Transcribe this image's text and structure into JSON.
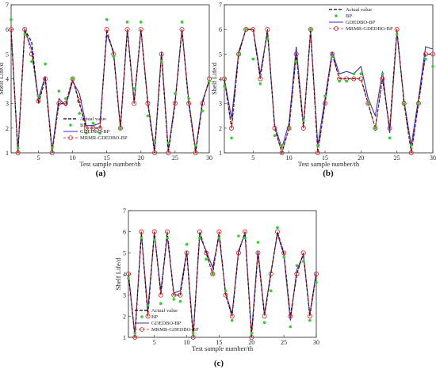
{
  "chart_data": [
    {
      "type": "line",
      "panel": "(a)",
      "xlabel": "Test sample number/th",
      "ylabel": "Shelf Life/d",
      "xlim": [
        1,
        30
      ],
      "ylim": [
        1,
        7
      ],
      "xticks": [
        5,
        10,
        15,
        20,
        25,
        30
      ],
      "yticks": [
        1,
        2,
        3,
        4,
        5,
        6,
        7
      ],
      "legend_position": "bottom-center",
      "x": [
        1,
        2,
        3,
        4,
        5,
        6,
        7,
        8,
        9,
        10,
        11,
        12,
        13,
        14,
        15,
        16,
        17,
        18,
        19,
        20,
        21,
        22,
        23,
        24,
        25,
        26,
        27,
        28,
        29,
        30
      ],
      "series": [
        {
          "name": "Actual value",
          "style": "dashed",
          "color": "#000000",
          "values": [
            6,
            1,
            6,
            5.5,
            3,
            4,
            1,
            3,
            3,
            4,
            3,
            2,
            2,
            2,
            6,
            5,
            2,
            6,
            3,
            6,
            3,
            1,
            5,
            1,
            3,
            6,
            3,
            1,
            3,
            4
          ]
        },
        {
          "name": "BP",
          "style": "marker",
          "color": "#33cc33",
          "values": [
            6.4,
            1.2,
            5.8,
            4.7,
            3.3,
            4.6,
            1.2,
            3.5,
            3.2,
            4.0,
            2.6,
            1.8,
            2.2,
            1.8,
            6.4,
            4.9,
            2.0,
            6.3,
            3.6,
            6.3,
            2.5,
            1.5,
            4.7,
            1.4,
            3.4,
            6.3,
            3.2,
            1.3,
            2.7,
            3.9
          ]
        },
        {
          "name": "GDEDBO-BP",
          "style": "solid",
          "color": "#3a2fb8",
          "values": [
            6,
            1,
            6,
            5.2,
            3.2,
            4.1,
            1.1,
            3.2,
            2.9,
            3.9,
            3.4,
            2.1,
            2.1,
            2.2,
            5.8,
            5.1,
            2,
            6,
            3.1,
            6,
            3.1,
            1.1,
            5.1,
            1.1,
            3.1,
            6,
            3.1,
            1.1,
            3.1,
            3.9
          ]
        },
        {
          "name": "MRMR-GDEDBO-BP",
          "style": "dash-circle",
          "color": "#cc2222",
          "values": [
            6,
            1,
            6,
            5,
            3.1,
            4,
            1,
            3,
            3,
            4,
            3.1,
            2,
            2,
            2,
            6,
            5,
            2,
            6,
            3,
            6,
            3,
            1,
            5,
            1,
            3,
            6,
            3,
            1,
            3,
            4
          ]
        }
      ]
    },
    {
      "type": "line",
      "panel": "(b)",
      "xlabel": "Test sample number/th",
      "ylabel": "Shelf Life/d",
      "xlim": [
        1,
        30
      ],
      "ylim": [
        1,
        7
      ],
      "xticks": [
        5,
        10,
        15,
        20,
        25,
        30
      ],
      "yticks": [
        1,
        2,
        3,
        4,
        5,
        6,
        7
      ],
      "legend_position": "top-right",
      "x": [
        1,
        2,
        3,
        4,
        5,
        6,
        7,
        8,
        9,
        10,
        11,
        12,
        13,
        14,
        15,
        16,
        17,
        18,
        19,
        20,
        21,
        22,
        23,
        24,
        25,
        26,
        27,
        28,
        29,
        30
      ],
      "series": [
        {
          "name": "Actual value",
          "style": "dashed",
          "color": "#000000",
          "values": [
            4,
            2,
            5,
            6,
            6,
            4,
            6,
            2,
            1,
            2,
            5,
            2,
            6,
            1,
            3,
            5,
            4,
            4,
            4,
            4,
            3,
            2,
            4,
            2,
            6,
            3,
            1,
            3,
            5,
            5
          ]
        },
        {
          "name": "BP",
          "style": "marker",
          "color": "#33cc33",
          "values": [
            3.7,
            1.6,
            5.0,
            6.0,
            4.8,
            3.8,
            5.6,
            1.7,
            1.3,
            2.0,
            4.7,
            2.3,
            6.0,
            1.3,
            3.3,
            4.9,
            3.9,
            3.9,
            4.2,
            4.2,
            3.0,
            2.0,
            4.2,
            1.6,
            5.8,
            3.0,
            1.3,
            3.0,
            4.8,
            4.5
          ]
        },
        {
          "name": "GDEDBO-BP",
          "style": "solid",
          "color": "#3a2fb8",
          "values": [
            4,
            2.4,
            5.1,
            6,
            6,
            4.2,
            5.9,
            2.1,
            1.2,
            2.2,
            5.3,
            2.1,
            5.9,
            1.3,
            3.2,
            5.1,
            4.2,
            4.3,
            4.2,
            4.5,
            3.2,
            2.5,
            4.3,
            1.8,
            5.9,
            3.1,
            1.3,
            3.2,
            5.3,
            5.2
          ]
        },
        {
          "name": "MRMR-GDEDBO-BP",
          "style": "dash-circle",
          "color": "#cc2222",
          "values": [
            4,
            2,
            5,
            6,
            6,
            4,
            6,
            2,
            1,
            2,
            5,
            2,
            6,
            1,
            3,
            5,
            4,
            4,
            4,
            4,
            3,
            2,
            4,
            2,
            6,
            3,
            1,
            3,
            5,
            5
          ]
        }
      ]
    },
    {
      "type": "line",
      "panel": "(c)",
      "xlabel": "Test sample number/th",
      "ylabel": "Shelf Life/d",
      "xlim": [
        1,
        30
      ],
      "ylim": [
        1,
        7
      ],
      "xticks": [
        5,
        10,
        15,
        20,
        25,
        30
      ],
      "yticks": [
        1,
        2,
        3,
        4,
        5,
        6,
        7
      ],
      "legend_position": "bottom-left",
      "x": [
        1,
        2,
        3,
        4,
        5,
        6,
        7,
        8,
        9,
        10,
        11,
        12,
        13,
        14,
        15,
        16,
        17,
        18,
        19,
        20,
        21,
        22,
        23,
        24,
        25,
        26,
        27,
        28,
        29,
        30
      ],
      "series": [
        {
          "name": "Actual value",
          "style": "dashed",
          "color": "#000000",
          "values": [
            4,
            1,
            6,
            2,
            6,
            3,
            6,
            3,
            3,
            5,
            1,
            6,
            5,
            4,
            6,
            3,
            2,
            5,
            6,
            1,
            5,
            2,
            4,
            6,
            5,
            2,
            4,
            5,
            2,
            4
          ]
        },
        {
          "name": "BP",
          "style": "marker",
          "color": "#33cc33",
          "values": [
            3.8,
            1.2,
            5.7,
            2.5,
            5.6,
            2.6,
            5.7,
            2.8,
            2.7,
            5.4,
            1.2,
            5.7,
            4.7,
            4.0,
            5.7,
            3.2,
            1.8,
            5.8,
            5.7,
            1.2,
            5.5,
            1.7,
            3.2,
            6.2,
            4.8,
            1.5,
            4.4,
            4.6,
            1.8,
            3.6
          ]
        },
        {
          "name": "GDEDBO-BP",
          "style": "solid",
          "color": "#3a2fb8",
          "values": [
            4,
            1.1,
            5.9,
            2.3,
            5.9,
            3.2,
            5.8,
            3.1,
            3.2,
            5.1,
            1.1,
            5.8,
            5.1,
            4.3,
            5.8,
            3.1,
            2.1,
            5.1,
            5.9,
            1.2,
            5.1,
            2.1,
            4.1,
            5.9,
            4.9,
            1.8,
            4.2,
            4.9,
            2.1,
            4.1
          ]
        },
        {
          "name": "MRMR-GDEDBO-BP",
          "style": "dash-circle",
          "color": "#cc2222",
          "values": [
            4,
            1,
            6,
            2,
            6,
            3,
            6,
            3,
            3,
            5,
            1,
            6,
            5,
            4,
            6,
            3,
            2,
            5,
            6,
            1,
            5,
            2,
            4,
            6,
            5,
            2,
            4,
            5,
            2,
            4
          ]
        }
      ]
    }
  ]
}
